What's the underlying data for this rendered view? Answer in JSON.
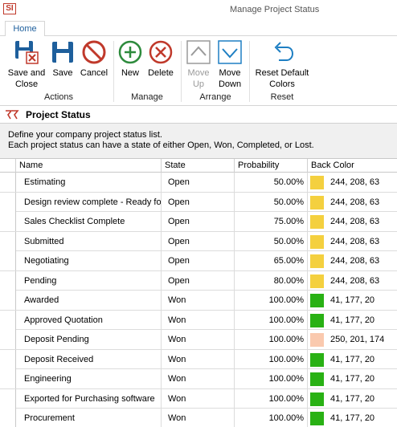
{
  "window": {
    "logo": "SI",
    "title": "Manage Project Status"
  },
  "ribbon": {
    "tab": "Home",
    "buttons": {
      "save_close": [
        "Save and",
        "Close"
      ],
      "save": "Save",
      "cancel": "Cancel",
      "new": "New",
      "delete": "Delete",
      "move_up": [
        "Move",
        "Up"
      ],
      "move_down": [
        "Move",
        "Down"
      ],
      "reset_default": [
        "Reset Default",
        "Colors"
      ]
    },
    "groups": {
      "actions": "Actions",
      "manage": "Manage",
      "arrange": "Arrange",
      "reset": "Reset"
    },
    "colors": {
      "save_blue": "#1e5f9c",
      "cancel_red": "#c0392b",
      "new_green": "#2e8b3d",
      "delete_red": "#c0392b",
      "arrow_blue": "#1e7fc3",
      "disabled_gray": "#9a9a9a"
    }
  },
  "section": {
    "title": "Project Status",
    "description_line1": "Define your company project status list.",
    "description_line2": "Each project status can have a state of either Open, Won, Completed, or Lost."
  },
  "grid": {
    "columns": [
      "Name",
      "State",
      "Probability",
      "Back Color"
    ],
    "rows": [
      {
        "name": "Estimating",
        "state": "Open",
        "probability": "50.00%",
        "color": "#f4d03f",
        "rgb": "244, 208, 63"
      },
      {
        "name": "Design review complete - Ready for",
        "state": "Open",
        "probability": "50.00%",
        "color": "#f4d03f",
        "rgb": "244, 208, 63"
      },
      {
        "name": "Sales Checklist Complete",
        "state": "Open",
        "probability": "75.00%",
        "color": "#f4d03f",
        "rgb": "244, 208, 63"
      },
      {
        "name": "Submitted",
        "state": "Open",
        "probability": "50.00%",
        "color": "#f4d03f",
        "rgb": "244, 208, 63"
      },
      {
        "name": "Negotiating",
        "state": "Open",
        "probability": "65.00%",
        "color": "#f4d03f",
        "rgb": "244, 208, 63"
      },
      {
        "name": "Pending",
        "state": "Open",
        "probability": "80.00%",
        "color": "#f4d03f",
        "rgb": "244, 208, 63"
      },
      {
        "name": "Awarded",
        "state": "Won",
        "probability": "100.00%",
        "color": "#29b114",
        "rgb": "41, 177, 20"
      },
      {
        "name": "Approved Quotation",
        "state": "Won",
        "probability": "100.00%",
        "color": "#29b114",
        "rgb": "41, 177, 20"
      },
      {
        "name": "Deposit Pending",
        "state": "Won",
        "probability": "100.00%",
        "color": "#fac9ae",
        "rgb": "250, 201, 174"
      },
      {
        "name": "Deposit Received",
        "state": "Won",
        "probability": "100.00%",
        "color": "#29b114",
        "rgb": "41, 177, 20"
      },
      {
        "name": "Engineering",
        "state": "Won",
        "probability": "100.00%",
        "color": "#29b114",
        "rgb": "41, 177, 20"
      },
      {
        "name": "Exported for Purchasing software",
        "state": "Won",
        "probability": "100.00%",
        "color": "#29b114",
        "rgb": "41, 177, 20"
      },
      {
        "name": "Procurement",
        "state": "Won",
        "probability": "100.00%",
        "color": "#29b114",
        "rgb": "41, 177, 20"
      }
    ]
  }
}
